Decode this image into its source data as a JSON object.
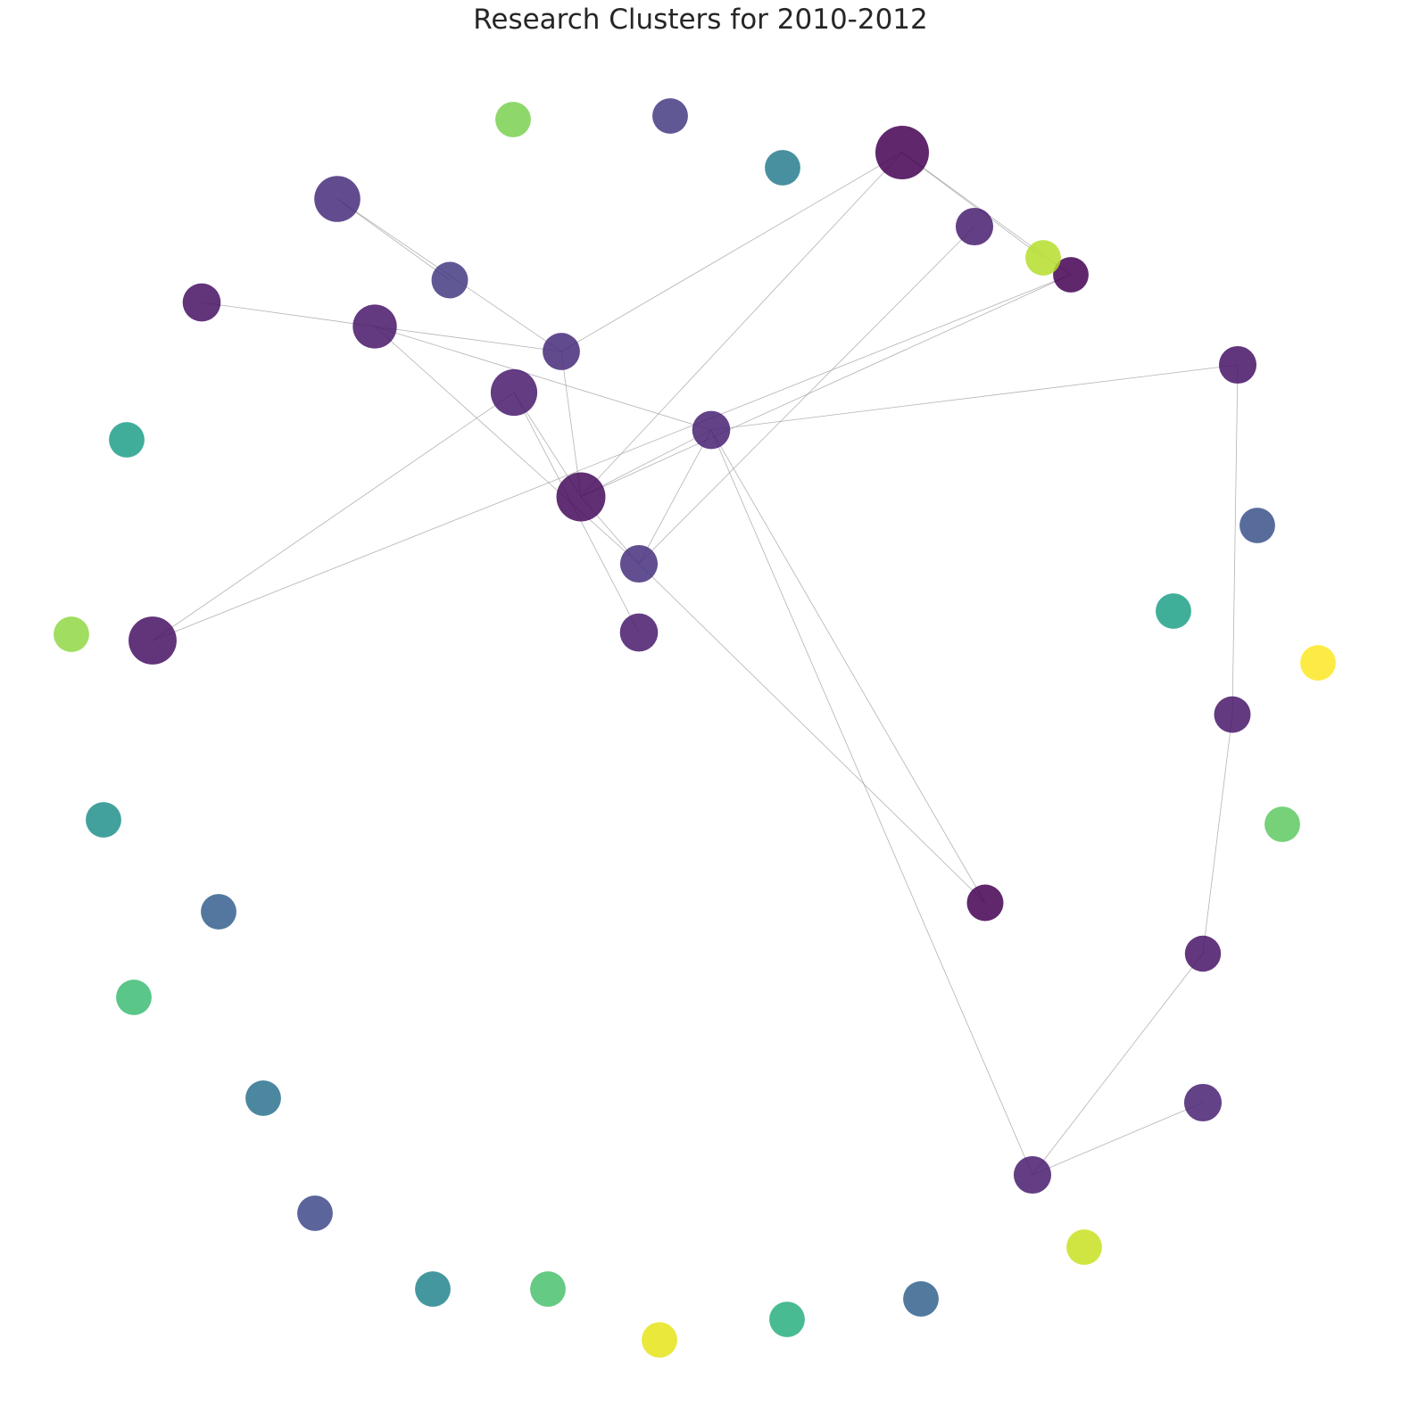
{
  "title": "Research Clusters for 2010-2012",
  "nodes": [
    {
      "id": "n1",
      "color": "#440154",
      "importance": 1.0
    },
    {
      "id": "n2",
      "color": "#472d7b",
      "importance": 0.7
    },
    {
      "id": "n3",
      "color": "#481668",
      "importance": 0.62
    },
    {
      "id": "n4",
      "color": "#471063",
      "importance": 0.78
    },
    {
      "id": "n5",
      "color": "#450a5a",
      "importance": 0.82
    },
    {
      "id": "n6",
      "color": "#481a6c",
      "importance": 0.72
    },
    {
      "id": "n7",
      "color": "#472a7a",
      "importance": 0.35
    },
    {
      "id": "n8",
      "color": "#443a83",
      "importance": 0.32
    },
    {
      "id": "n9",
      "color": "#46307e",
      "importance": 0.36
    },
    {
      "id": "n10",
      "color": "#482173",
      "importance": 0.38
    },
    {
      "id": "n11",
      "color": "#481f70",
      "importance": 0.36
    },
    {
      "id": "n12",
      "color": "#440154",
      "importance": 0.28
    },
    {
      "id": "n13",
      "color": "#471365",
      "importance": 0.36
    },
    {
      "id": "n14",
      "color": "#481a6c",
      "importance": 0.38
    },
    {
      "id": "n15",
      "color": "#440154",
      "importance": 0.3
    },
    {
      "id": "n16",
      "color": "#440154",
      "importance": 0.32
    },
    {
      "id": "n17",
      "color": "#471063",
      "importance": 0.38
    },
    {
      "id": "n18",
      "color": "#450457",
      "importance": 0.28
    },
    {
      "id": "n19",
      "color": "#481668",
      "importance": 0.32
    },
    {
      "id": "n20",
      "color": "#481c6e",
      "importance": 0.36
    },
    {
      "id": "n21",
      "color": "#481467",
      "importance": 0.3
    },
    {
      "id": "n22",
      "color": "#482173",
      "importance": 0.36
    },
    {
      "id": "n23",
      "color": "#481467",
      "importance": 0.34
    },
    {
      "id": "n24",
      "color": "#482173",
      "importance": 0.36
    },
    {
      "id": "n25",
      "color": "#b5de2b",
      "importance": 0.28
    },
    {
      "id": "n26",
      "color": "#7ad151",
      "importance": 0.28
    },
    {
      "id": "n27",
      "color": "#443a83",
      "importance": 0.28
    },
    {
      "id": "n28",
      "color": "#287c8e",
      "importance": 0.28
    },
    {
      "id": "n29",
      "color": "#1f9f88",
      "importance": 0.28
    },
    {
      "id": "n30",
      "color": "#8fd744",
      "importance": 0.28
    },
    {
      "id": "n31",
      "color": "#3b528b",
      "importance": 0.28
    },
    {
      "id": "n32",
      "color": "#1fa188",
      "importance": 0.28
    },
    {
      "id": "n33",
      "color": "#fde725",
      "importance": 0.28
    },
    {
      "id": "n34",
      "color": "#5ec962",
      "importance": 0.28
    },
    {
      "id": "n35",
      "color": "#21918c",
      "importance": 0.28
    },
    {
      "id": "n36",
      "color": "#355f8d",
      "importance": 0.28
    },
    {
      "id": "n37",
      "color": "#3dbc74",
      "importance": 0.28
    },
    {
      "id": "n38",
      "color": "#2c728e",
      "importance": 0.28
    },
    {
      "id": "n39",
      "color": "#3e4a89",
      "importance": 0.28
    },
    {
      "id": "n40",
      "color": "#25858e",
      "importance": 0.28
    },
    {
      "id": "n41",
      "color": "#4ac16d",
      "importance": 0.28
    },
    {
      "id": "n42",
      "color": "#e5e419",
      "importance": 0.28
    },
    {
      "id": "n43",
      "color": "#29af7f",
      "importance": 0.28
    },
    {
      "id": "n44",
      "color": "#33638d",
      "importance": 0.28
    },
    {
      "id": "n45",
      "color": "#c8e020",
      "importance": 0.28
    }
  ],
  "edges": [
    [
      "n1",
      "n25"
    ],
    [
      "n1",
      "n7"
    ],
    [
      "n1",
      "n12"
    ],
    [
      "n1",
      "n5"
    ],
    [
      "n2",
      "n8"
    ],
    [
      "n2",
      "n7"
    ],
    [
      "n3",
      "n7"
    ],
    [
      "n3",
      "n9"
    ],
    [
      "n3",
      "n17"
    ],
    [
      "n3",
      "n10"
    ],
    [
      "n6",
      "n5"
    ],
    [
      "n6",
      "n4"
    ],
    [
      "n6",
      "n14"
    ],
    [
      "n7",
      "n5"
    ],
    [
      "n5",
      "n9"
    ],
    [
      "n5",
      "n10"
    ],
    [
      "n5",
      "n15"
    ],
    [
      "n9",
      "n10"
    ],
    [
      "n9",
      "n16"
    ],
    [
      "n9",
      "n11"
    ],
    [
      "n10",
      "n13"
    ],
    [
      "n10",
      "n23"
    ],
    [
      "n10",
      "n24"
    ],
    [
      "n12",
      "n4"
    ],
    [
      "n13",
      "n19"
    ],
    [
      "n19",
      "n21"
    ],
    [
      "n21",
      "n20"
    ],
    [
      "n20",
      "n22"
    ]
  ]
}
